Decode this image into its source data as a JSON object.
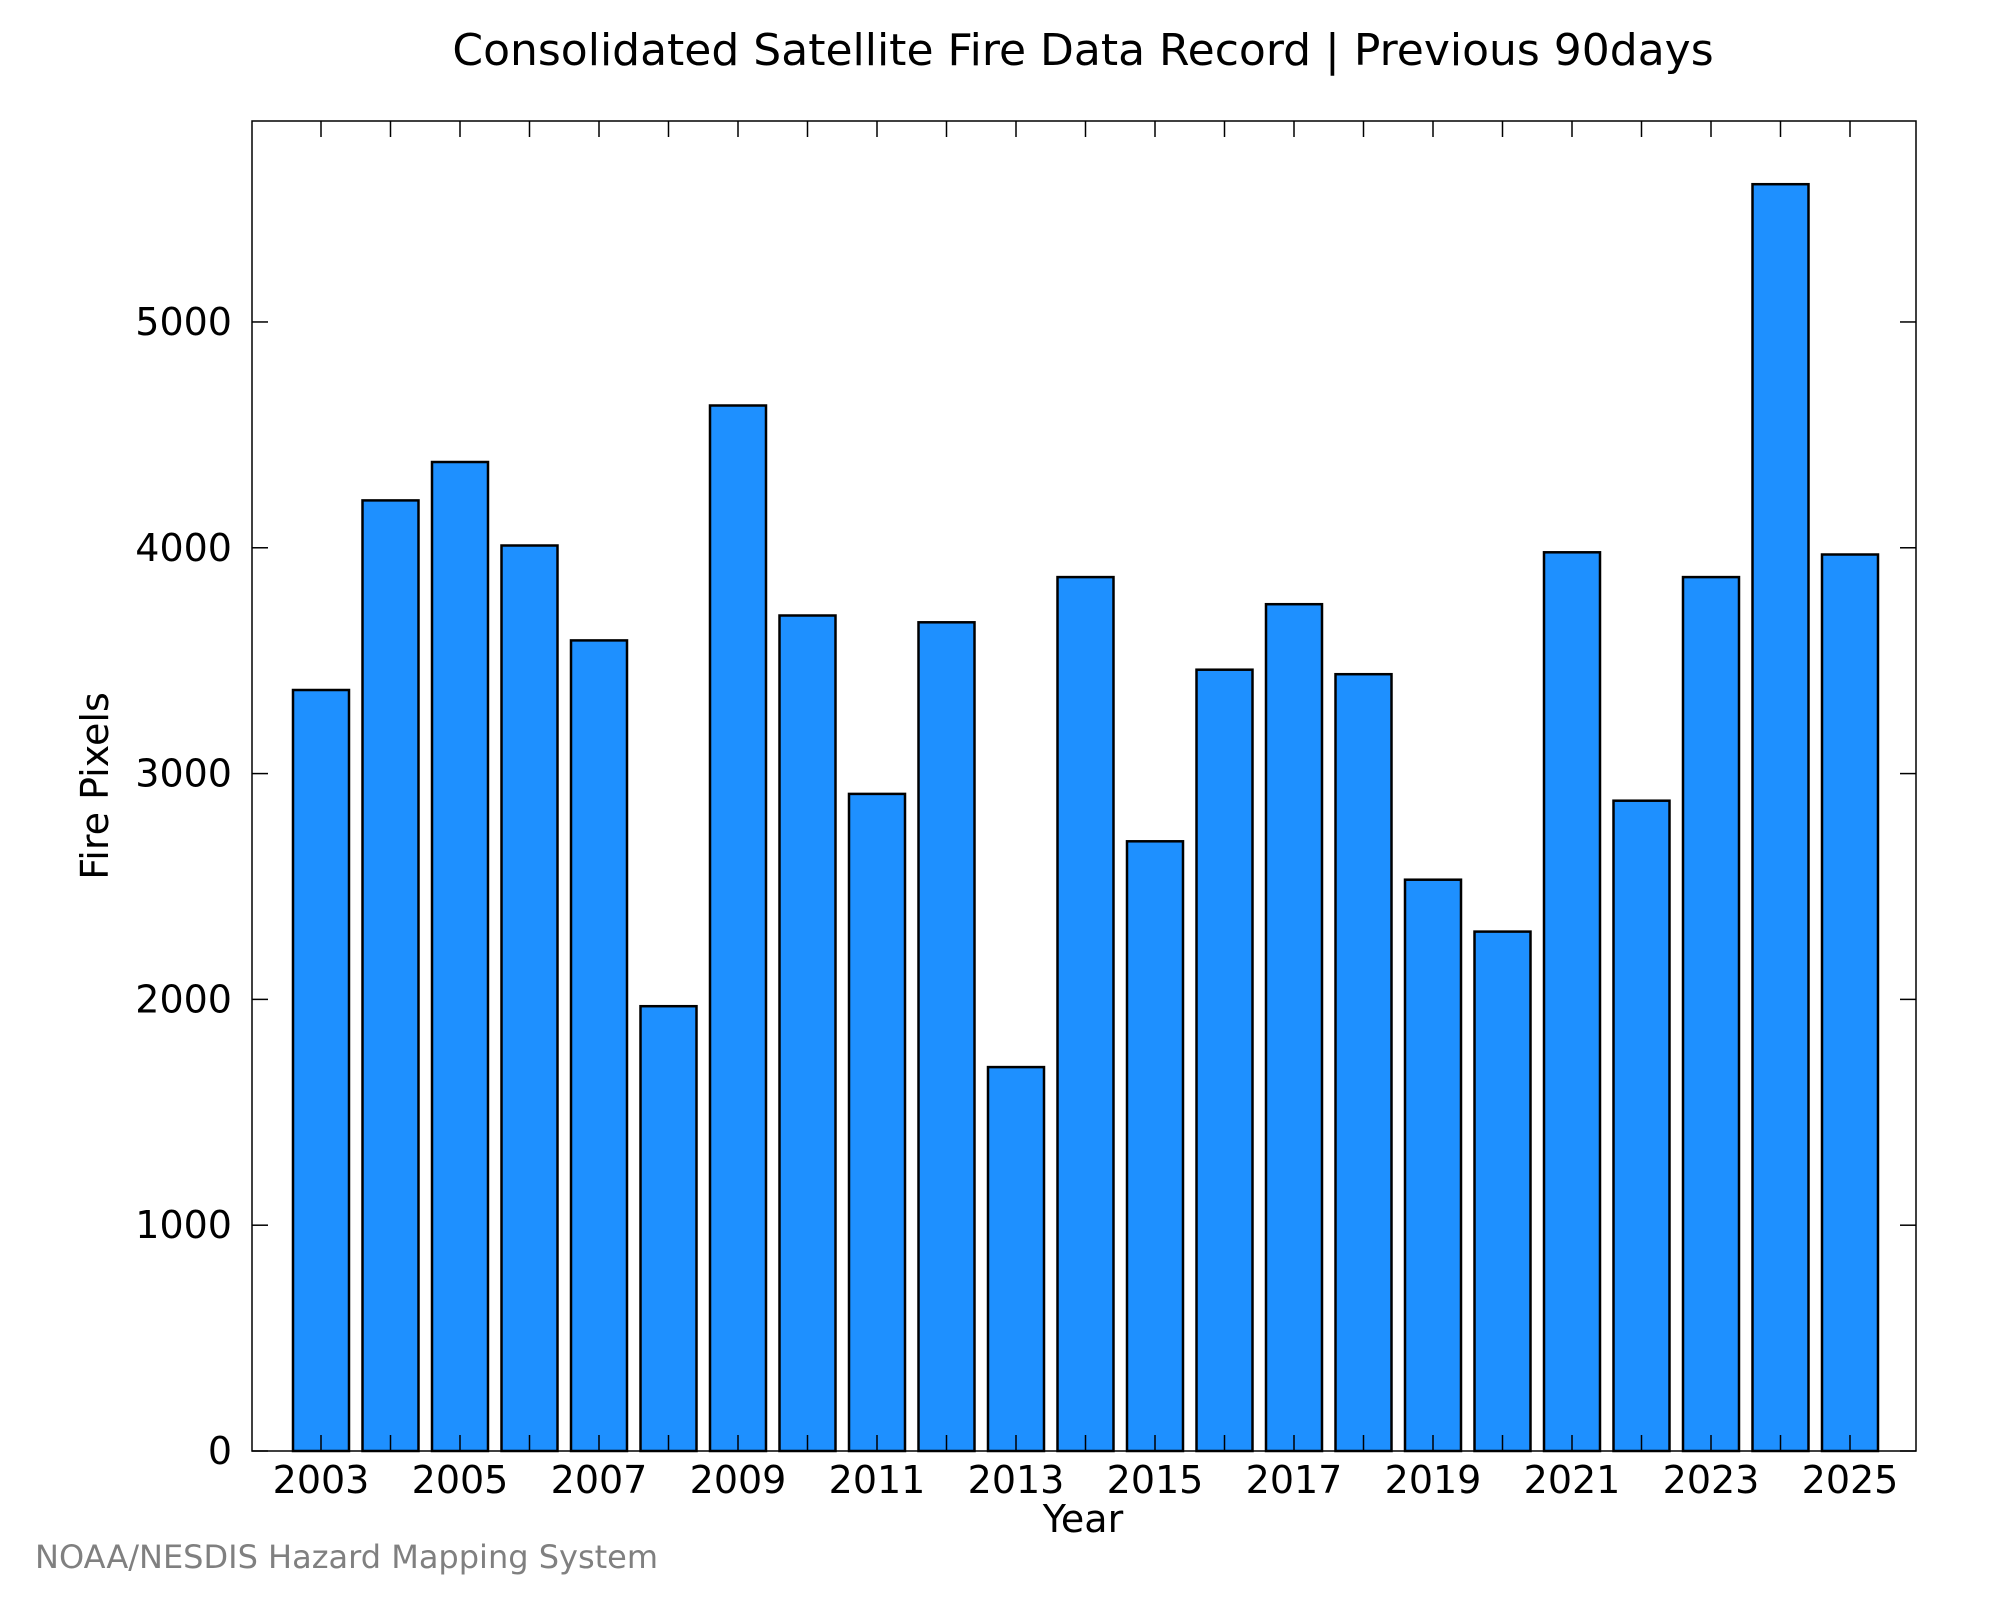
{
  "chart_data": {
    "type": "bar",
    "title": "Consolidated Satellite Fire Data Record | Previous 90days",
    "xlabel": "Year",
    "ylabel": "Fire Pixels",
    "categories": [
      "2003",
      "2004",
      "2005",
      "2006",
      "2007",
      "2008",
      "2009",
      "2010",
      "2011",
      "2012",
      "2013",
      "2014",
      "2015",
      "2016",
      "2017",
      "2018",
      "2019",
      "2020",
      "2021",
      "2022",
      "2023",
      "2024",
      "2025"
    ],
    "values": [
      3370,
      4210,
      4380,
      4010,
      3590,
      1970,
      4630,
      3700,
      2910,
      3670,
      1700,
      3870,
      2700,
      3460,
      3750,
      3440,
      2530,
      2300,
      3980,
      2880,
      3870,
      5610,
      3970
    ],
    "x_tick_labels": [
      "2003",
      "2005",
      "2007",
      "2009",
      "2011",
      "2013",
      "2015",
      "2017",
      "2019",
      "2021",
      "2023",
      "2025"
    ],
    "y_ticks": [
      0,
      1000,
      2000,
      3000,
      4000,
      5000
    ],
    "ylim": [
      0,
      5890
    ],
    "grid": false,
    "bar_color": "#1e90ff"
  },
  "credit": "NOAA/NESDIS Hazard Mapping System"
}
